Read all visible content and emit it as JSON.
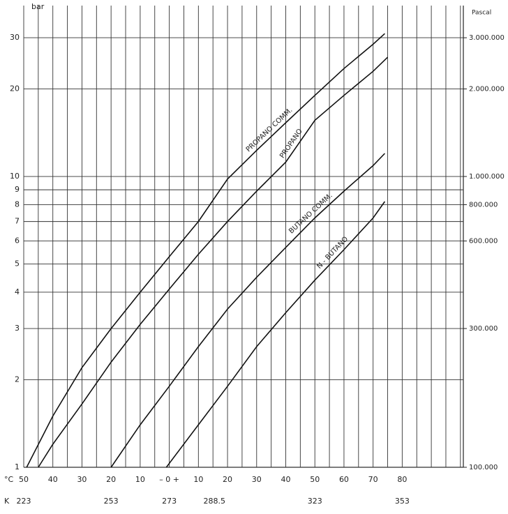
{
  "chart_data": {
    "type": "line",
    "y_label": "bar",
    "y2_label": "Pascal",
    "x_label": "°C",
    "x2_label": "K",
    "log_y": true,
    "grid": true,
    "color": "#111111",
    "xlim": [
      -50,
      101
    ],
    "xticks": [
      {
        "value": -50,
        "label": "50"
      },
      {
        "value": -40,
        "label": "40"
      },
      {
        "value": -30,
        "label": "30"
      },
      {
        "value": -20,
        "label": "20"
      },
      {
        "value": -10,
        "label": "10"
      },
      {
        "value": 0,
        "label": "– 0 +"
      },
      10,
      20,
      30,
      40,
      50,
      60,
      70,
      80
    ],
    "xminorticks": [
      -45,
      -35,
      -25,
      -15,
      -5,
      5,
      15,
      25,
      35,
      45,
      55,
      65,
      75,
      85,
      90,
      95,
      100
    ],
    "x2lim": [
      223,
      374
    ],
    "x2ticks": [
      223,
      253,
      273,
      288.5,
      323,
      353
    ],
    "ylim": [
      1,
      38.7
    ],
    "yticks": [
      1,
      2,
      3,
      4,
      5,
      6,
      7,
      8,
      9,
      10,
      20,
      30
    ],
    "y2lim": [
      100000,
      3870000
    ],
    "y2ticks": [
      {
        "value": 100000,
        "label": "100.000"
      },
      {
        "value": 300000,
        "label": "300.000"
      },
      {
        "value": 600000,
        "label": "600.000"
      },
      {
        "value": 800000,
        "label": "800.000"
      },
      {
        "value": 1000000,
        "label": "1.000.000"
      },
      {
        "value": 2000000,
        "label": "2.000.000"
      },
      {
        "value": 3000000,
        "label": "3.000.000"
      }
    ],
    "series": [
      {
        "name": "PROPANO COMM.",
        "color": "#111111",
        "x": [
          -49,
          -40,
          -30,
          -20,
          -10,
          0,
          10,
          20,
          30,
          40,
          50,
          60,
          70,
          74
        ],
        "values": [
          1.0,
          1.5,
          2.2,
          3.0,
          4.0,
          5.3,
          7.0,
          9.8,
          12.3,
          15.3,
          19,
          23.5,
          28.5,
          31
        ]
      },
      {
        "name": "PROPANO",
        "color": "#111111",
        "x": [
          -45,
          -40,
          -30,
          -20,
          -10,
          0,
          10,
          20,
          30,
          40,
          50,
          60,
          70,
          75
        ],
        "values": [
          1.0,
          1.2,
          1.65,
          2.3,
          3.1,
          4.1,
          5.4,
          7.0,
          8.9,
          11.2,
          15.6,
          19,
          23,
          25.7
        ]
      },
      {
        "name": "BUTANO COMM.",
        "color": "#111111",
        "x": [
          -20,
          -10,
          0,
          10,
          20,
          30,
          40,
          50,
          60,
          70,
          74
        ],
        "values": [
          1.0,
          1.4,
          1.9,
          2.6,
          3.5,
          4.5,
          5.7,
          7.2,
          8.9,
          10.9,
          12
        ]
      },
      {
        "name": "N - BUTANO",
        "color": "#111111",
        "x": [
          -1,
          10,
          20,
          30,
          40,
          50,
          60,
          70,
          74
        ],
        "values": [
          1.0,
          1.4,
          1.9,
          2.6,
          3.4,
          4.4,
          5.6,
          7.2,
          8.2
        ]
      }
    ]
  }
}
